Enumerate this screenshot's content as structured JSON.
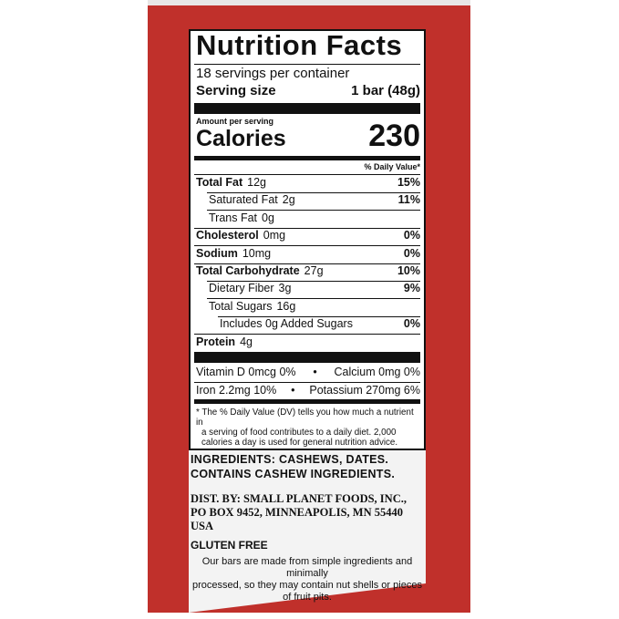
{
  "label": {
    "title": "Nutrition Facts",
    "servings": "18 servings per container",
    "serving_size_label": "Serving size",
    "serving_size_value": "1 bar (48g)",
    "amount_per_serving": "Amount per serving",
    "calories_label": "Calories",
    "calories_value": "230",
    "dv_header": "% Daily Value*",
    "rows": [
      {
        "name": "Total Fat",
        "amount": "12g",
        "dv": "15%"
      },
      {
        "name": "Saturated Fat",
        "amount": "2g",
        "dv": "11%"
      },
      {
        "name": "Trans Fat",
        "amount": "0g",
        "dv": ""
      },
      {
        "name": "Cholesterol",
        "amount": "0mg",
        "dv": "0%"
      },
      {
        "name": "Sodium",
        "amount": "10mg",
        "dv": "0%"
      },
      {
        "name": "Total Carbohydrate",
        "amount": "27g",
        "dv": "10%"
      },
      {
        "name": "Dietary Fiber",
        "amount": "3g",
        "dv": "9%"
      },
      {
        "name": "Total Sugars",
        "amount": "16g",
        "dv": ""
      },
      {
        "name": "Includes 0g Added Sugars",
        "amount": "",
        "dv": "0%"
      },
      {
        "name": "Protein",
        "amount": "4g",
        "dv": ""
      }
    ],
    "micros": [
      {
        "left": "Vitamin D  0mcg  0%",
        "right": "Calcium  0mg  0%"
      },
      {
        "left": "Iron  2.2mg  10%",
        "right": "Potassium  270mg  6%"
      }
    ],
    "bullet": "•",
    "footnote": [
      "* The % Daily Value (DV) tells you how much a nutrient in",
      "a serving of food contributes to a daily diet. 2,000",
      "calories a day is used for general nutrition advice."
    ]
  },
  "ingredients": [
    "INGREDIENTS: CASHEWS, DATES.",
    "CONTAINS CASHEW INGREDIENTS."
  ],
  "distributor": [
    "DIST. BY: SMALL PLANET FOODS, INC.,",
    "PO BOX 9452, MINNEAPOLIS, MN 55440 USA"
  ],
  "gluten_free": "GLUTEN FREE",
  "note": [
    "Our bars are made from simple ingredients and minimally",
    "processed, so they may contain nut shells or pieces of fruit pits."
  ],
  "colors": {
    "box": "#c0302b",
    "ink": "#111111"
  }
}
